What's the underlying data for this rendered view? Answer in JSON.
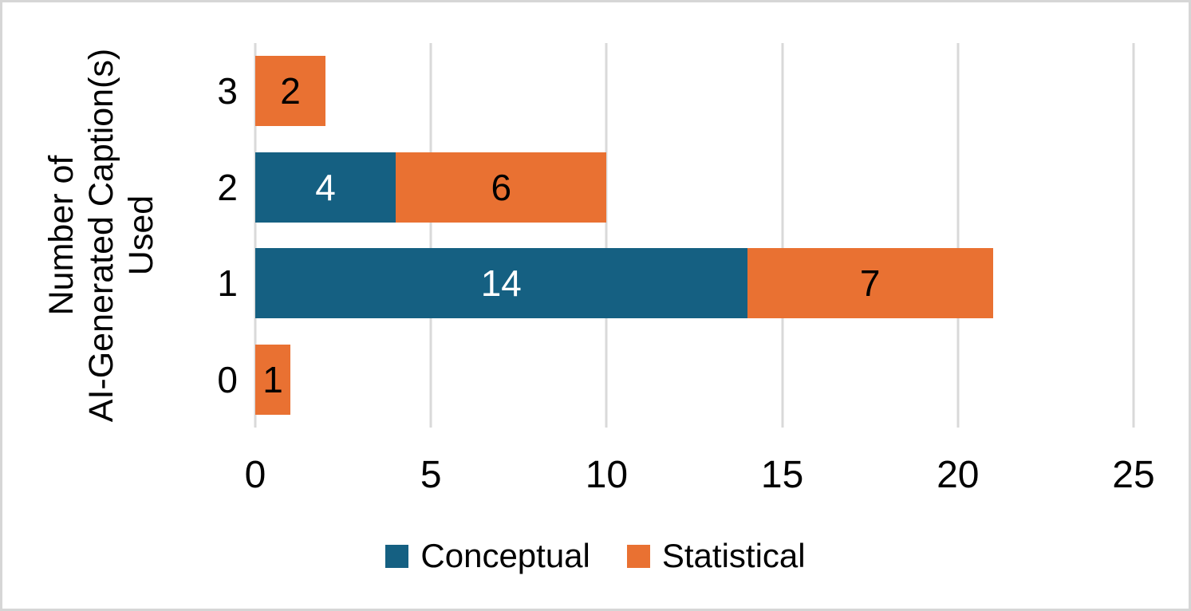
{
  "chart_data": {
    "type": "bar",
    "orientation": "horizontal",
    "stacked": true,
    "categories": [
      "3",
      "2",
      "1",
      "0"
    ],
    "series": [
      {
        "name": "Conceptual",
        "color": "#156082",
        "label_color": "#ffffff",
        "values": [
          0,
          4,
          14,
          0
        ]
      },
      {
        "name": "Statistical",
        "color": "#E97132",
        "label_color": "#000000",
        "values": [
          2,
          6,
          7,
          1
        ]
      }
    ],
    "ylabel_lines": [
      "Number of",
      "AI-Generated Caption(s)",
      "Used"
    ],
    "x_ticks": [
      0,
      5,
      10,
      15,
      20,
      25
    ],
    "xlim": [
      0,
      25
    ],
    "grid": true,
    "gridline_color": "#d9d9d9",
    "legend_position": "bottom",
    "title": "",
    "xlabel": ""
  }
}
